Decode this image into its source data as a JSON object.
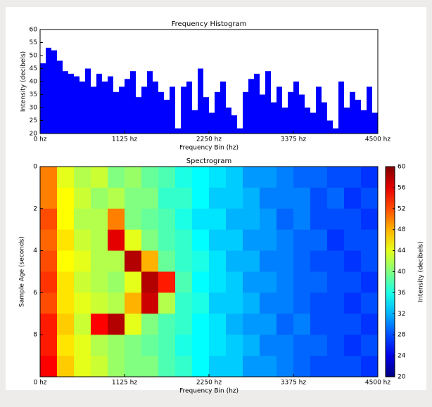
{
  "chart_data": [
    {
      "type": "histogram",
      "title": "Frequency Histogram",
      "xlabel": "Frequency Bin (hz)",
      "ylabel": "Intensity (decibels)",
      "color": "#0000ff",
      "bins": [
        0,
        75,
        150,
        225,
        300,
        375,
        450,
        525,
        600,
        675,
        750,
        825,
        900,
        975,
        1050,
        1125,
        1200,
        1275,
        1350,
        1425,
        1500,
        1575,
        1650,
        1725,
        1800,
        1875,
        1950,
        2025,
        2100,
        2175,
        2250,
        2325,
        2400,
        2475,
        2550,
        2625,
        2700,
        2775,
        2850,
        2925,
        3000,
        3075,
        3150,
        3225,
        3300,
        3375,
        3450,
        3525,
        3600,
        3675,
        3750,
        3825,
        3900,
        3975,
        4050,
        4125,
        4200,
        4275,
        4350,
        4425,
        4500
      ],
      "values": [
        47,
        53,
        52,
        48,
        44,
        43,
        42,
        40,
        45,
        38,
        43,
        40,
        42,
        36,
        38,
        41,
        44,
        34,
        38,
        44,
        40,
        36,
        33,
        38,
        22,
        38,
        40,
        29,
        45,
        34,
        28,
        36,
        40,
        30,
        27,
        22,
        36,
        41,
        43,
        35,
        44,
        32,
        38,
        30,
        36,
        40,
        35,
        30,
        28,
        38,
        32,
        25,
        22,
        40,
        30,
        36,
        33,
        29,
        38,
        28
      ],
      "xlim": [
        0,
        4500
      ],
      "xticks": [
        {
          "value": 0,
          "label": "0 hz"
        },
        {
          "value": 1125,
          "label": "1125 hz"
        },
        {
          "value": 2250,
          "label": "2250 hz"
        },
        {
          "value": 3375,
          "label": "3375 hz"
        },
        {
          "value": 4500,
          "label": "4500 hz"
        }
      ],
      "ylim": [
        20,
        60
      ],
      "yticks": [
        20,
        25,
        30,
        35,
        40,
        45,
        50,
        55,
        60
      ]
    },
    {
      "type": "heatmap",
      "title": "Spectrogram",
      "xlabel": "Frequency Bin (hz)",
      "ylabel": "Sample Age (seconds)",
      "colormap": "jet",
      "xlim": [
        0,
        4500
      ],
      "xticks": [
        {
          "value": 0,
          "label": "0 hz"
        },
        {
          "value": 1125,
          "label": "1125 hz"
        },
        {
          "value": 2250,
          "label": "2250 hz"
        },
        {
          "value": 3375,
          "label": "3375 hz"
        },
        {
          "value": 4500,
          "label": "4500 hz"
        }
      ],
      "ylim": [
        10,
        0
      ],
      "yticks": [
        0,
        2,
        4,
        6,
        8
      ],
      "z": [
        [
          50,
          44,
          42,
          43,
          40,
          41,
          39,
          38,
          36,
          35,
          34,
          33,
          31,
          31,
          30,
          29,
          29,
          28,
          28,
          27
        ],
        [
          50,
          45,
          43,
          41,
          42,
          40,
          40,
          37,
          37,
          35,
          33,
          33,
          32,
          30,
          30,
          30,
          28,
          29,
          27,
          28
        ],
        [
          52,
          45,
          42,
          42,
          50,
          40,
          39,
          38,
          36,
          34,
          34,
          32,
          32,
          31,
          29,
          30,
          28,
          28,
          28,
          27
        ],
        [
          51,
          46,
          43,
          42,
          56,
          44,
          40,
          38,
          37,
          35,
          33,
          33,
          31,
          31,
          30,
          29,
          29,
          27,
          28,
          28
        ],
        [
          52,
          45,
          44,
          42,
          42,
          58,
          48,
          39,
          37,
          36,
          34,
          32,
          32,
          30,
          30,
          29,
          28,
          28,
          27,
          28
        ],
        [
          53,
          46,
          43,
          42,
          41,
          44,
          58,
          54,
          38,
          35,
          34,
          33,
          31,
          31,
          30,
          29,
          29,
          28,
          28,
          27
        ],
        [
          52,
          46,
          44,
          43,
          42,
          48,
          57,
          42,
          37,
          36,
          33,
          33,
          32,
          30,
          30,
          29,
          28,
          28,
          27,
          28
        ],
        [
          54,
          47,
          43,
          55,
          58,
          44,
          40,
          38,
          37,
          35,
          34,
          32,
          31,
          31,
          29,
          30,
          28,
          28,
          28,
          27
        ],
        [
          54,
          46,
          44,
          42,
          41,
          40,
          39,
          38,
          36,
          35,
          34,
          33,
          32,
          30,
          30,
          29,
          29,
          28,
          27,
          28
        ],
        [
          55,
          47,
          44,
          43,
          41,
          40,
          40,
          38,
          37,
          35,
          33,
          33,
          31,
          31,
          30,
          29,
          28,
          28,
          28,
          27
        ]
      ],
      "zlim": [
        20,
        60
      ],
      "zticks": [
        20,
        24,
        28,
        32,
        36,
        40,
        44,
        48,
        52,
        56,
        60
      ],
      "zlabel": "Intensity (decibels)"
    }
  ]
}
